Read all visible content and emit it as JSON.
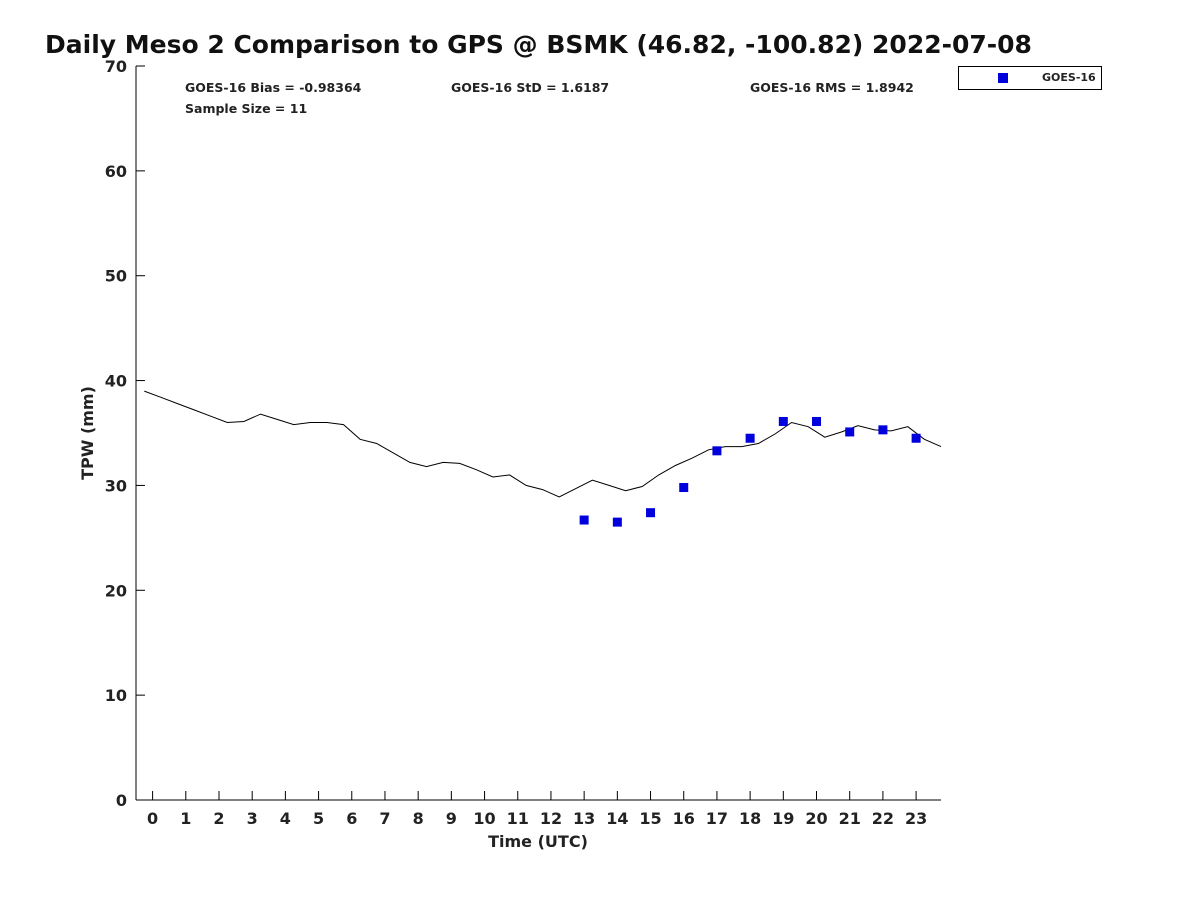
{
  "chart_data": {
    "type": "scatter",
    "title": "Daily Meso 2 Comparison to GPS @ BSMK (46.82, -100.82) 2022-07-08",
    "xlabel": "Time (UTC)",
    "ylabel": "TPW (mm)",
    "xlim": [
      -0.5,
      23.75
    ],
    "ylim": [
      0,
      70
    ],
    "x_ticks": [
      0,
      1,
      2,
      3,
      4,
      5,
      6,
      7,
      8,
      9,
      10,
      11,
      12,
      13,
      14,
      15,
      16,
      17,
      18,
      19,
      20,
      21,
      22,
      23
    ],
    "y_ticks": [
      0,
      10,
      20,
      30,
      40,
      50,
      60,
      70
    ],
    "grid": false,
    "legend_position": "top-right, outside plot",
    "stats": {
      "bias": "GOES-16 Bias = -0.98364",
      "std": "GOES-16 StD = 1.6187",
      "rms": "GOES-16 RMS = 1.8942",
      "sample_size": "Sample Size = 11"
    },
    "series": [
      {
        "kind": "line",
        "color": "#000000",
        "x": [
          -0.25,
          0.25,
          0.75,
          1.25,
          1.75,
          2.25,
          2.75,
          3.25,
          3.75,
          4.25,
          4.75,
          5.25,
          5.75,
          6.25,
          6.75,
          7.25,
          7.75,
          8.25,
          8.75,
          9.25,
          9.75,
          10.25,
          10.75,
          11.25,
          11.75,
          12.25,
          12.75,
          13.25,
          13.75,
          14.25,
          14.75,
          15.25,
          15.75,
          16.25,
          16.75,
          17.25,
          17.75,
          18.25,
          18.75,
          19.25,
          19.75,
          20.25,
          20.75,
          21.25,
          21.75,
          22.25,
          22.75,
          23.25,
          23.75
        ],
        "y": [
          39.0,
          38.4,
          37.8,
          37.2,
          36.6,
          36.0,
          36.1,
          36.8,
          36.3,
          35.8,
          36.0,
          36.0,
          35.8,
          34.4,
          34.0,
          33.1,
          32.2,
          31.8,
          32.2,
          32.1,
          31.5,
          30.8,
          31.0,
          30.0,
          29.6,
          28.9,
          29.7,
          30.5,
          30.0,
          29.5,
          29.9,
          31.0,
          31.9,
          32.6,
          33.4,
          33.7,
          33.7,
          34.0,
          34.9,
          36.0,
          35.6,
          34.6,
          35.1,
          35.7,
          35.3,
          35.2,
          35.6,
          34.4,
          33.7
        ]
      },
      {
        "name": "GOES-16",
        "kind": "scatter",
        "color": "#0000dd",
        "x": [
          13,
          14,
          15,
          16,
          17,
          18,
          19,
          20,
          21,
          22,
          23
        ],
        "y": [
          26.7,
          26.5,
          27.4,
          29.8,
          33.3,
          34.5,
          36.1,
          36.1,
          35.1,
          35.3,
          34.5
        ]
      }
    ]
  }
}
